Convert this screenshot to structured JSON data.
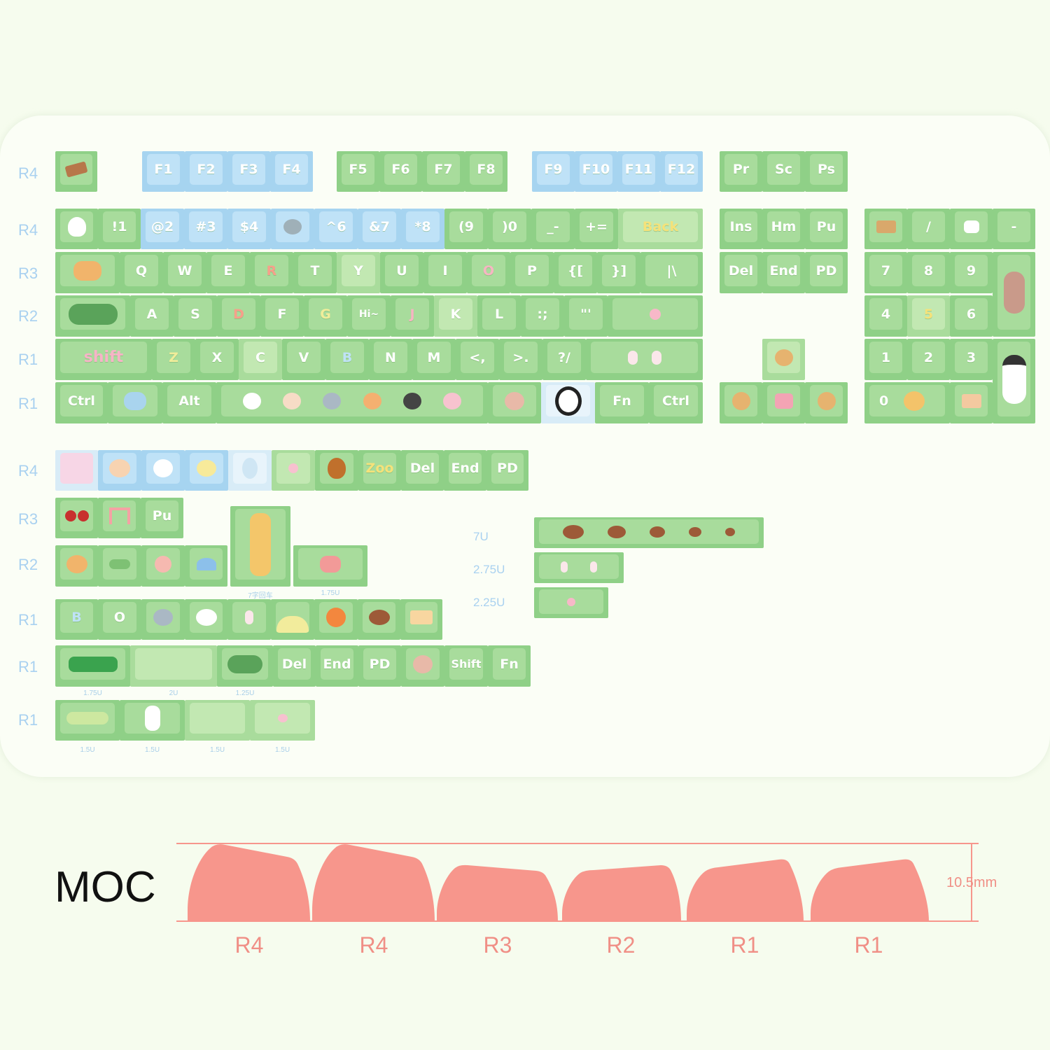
{
  "row_labels": {
    "a1": "R4",
    "a2": "R4",
    "a3": "R3",
    "a4": "R2",
    "a5": "R1",
    "a6": "R1",
    "b1": "R4",
    "b2": "R3",
    "b3": "R2",
    "b4": "R1",
    "b5": "R1",
    "b6": "R1"
  },
  "fn_row": [
    "F1",
    "F2",
    "F3",
    "F4",
    "F5",
    "F6",
    "F7",
    "F8",
    "F9",
    "F10",
    "F11",
    "F12",
    "Pr",
    "Sc",
    "Ps"
  ],
  "num_row": [
    "!1",
    "@2",
    "#3",
    "$4",
    "^6",
    "&7",
    "*8",
    "(9",
    ")0",
    "_-",
    "+=",
    "Back"
  ],
  "nav1": [
    "Ins",
    "Hm",
    "Pu"
  ],
  "nav2": [
    "Del",
    "End",
    "PD"
  ],
  "q_row": [
    "Q",
    "W",
    "E",
    "R",
    "T",
    "Y",
    "U",
    "I",
    "O",
    "P",
    "{[",
    "}]",
    "|\\"
  ],
  "a_row": [
    "A",
    "S",
    "D",
    "F",
    "G",
    "Hi~",
    "J",
    "K",
    "L",
    ":;",
    "\"'"
  ],
  "z_row": [
    "shift",
    "Z",
    "X",
    "C",
    "V",
    "B",
    "N",
    "M",
    "<,",
    ">.",
    "?/"
  ],
  "bottom": [
    "Ctrl",
    "Alt",
    "Fn",
    "Ctrl"
  ],
  "numpad": [
    "/",
    "-",
    "7",
    "8",
    "9",
    "4",
    "5",
    "6",
    "1",
    "2",
    "3",
    "0"
  ],
  "extras_r4": [
    "Zoo",
    "Del",
    "End",
    "PD"
  ],
  "extras_r3": [
    "Pu"
  ],
  "extras_r1a": [
    "B",
    "O"
  ],
  "extras_r1b": [
    "Del",
    "End",
    "PD",
    "Shift",
    "Fn"
  ],
  "small_labels": {
    "giraffe": "7字回车",
    "butterfly": "1.75U",
    "croc": "1.75U",
    "plaid": "2U",
    "bush": "1.25U",
    "c1": "1.5U",
    "c2": "1.5U",
    "c3": "1.5U",
    "c4": "1.5U"
  },
  "size_labels": [
    "7U",
    "2.75U",
    "2.25U"
  ],
  "profile": {
    "title": "MOC",
    "rows": [
      "R4",
      "R4",
      "R3",
      "R2",
      "R1",
      "R1"
    ],
    "height": "10.5mm",
    "color": "#f7968c"
  }
}
